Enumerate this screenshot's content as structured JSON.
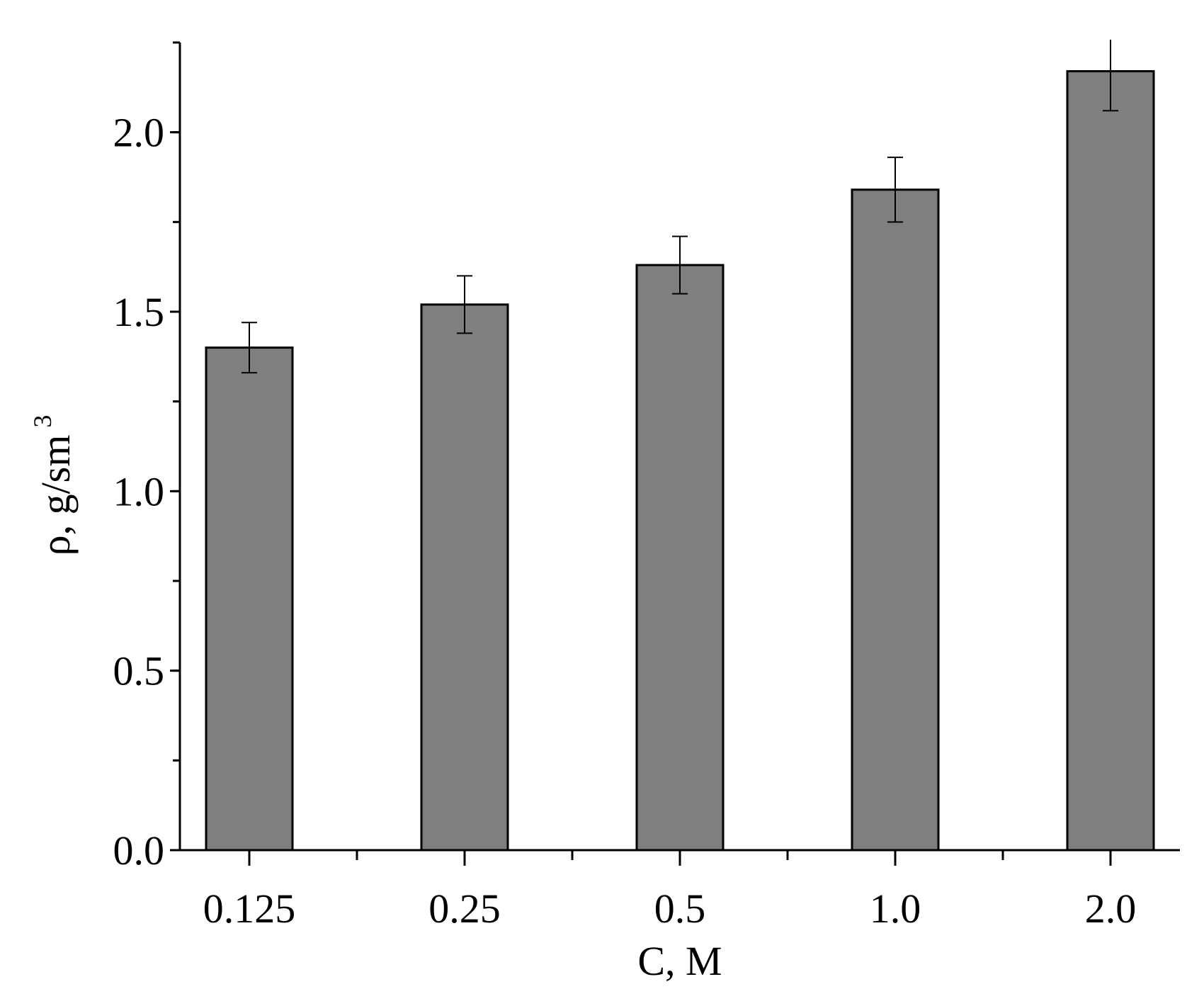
{
  "chart_data": {
    "type": "bar",
    "categories": [
      "0.125",
      "0.25",
      "0.5",
      "1.0",
      "2.0"
    ],
    "values": [
      1.4,
      1.52,
      1.63,
      1.84,
      2.17
    ],
    "error": [
      0.07,
      0.08,
      0.08,
      0.09,
      0.11
    ],
    "title": "",
    "xlabel": "C, M",
    "ylabel": {
      "text": "ρ, g/sm",
      "superscript": "3"
    },
    "ylim": [
      0,
      2.25
    ],
    "yticks": [
      0.0,
      0.5,
      1.0,
      1.5,
      2.0
    ],
    "ytick_labels": [
      "0.0",
      "0.5",
      "1.0",
      "1.5",
      "2.0"
    ],
    "y_minor_step": 0.25,
    "grid": false,
    "legend": "none",
    "colors": {
      "bar_fill": "#7f7f7f",
      "bar_stroke": "#000000",
      "axis": "#000000"
    }
  }
}
